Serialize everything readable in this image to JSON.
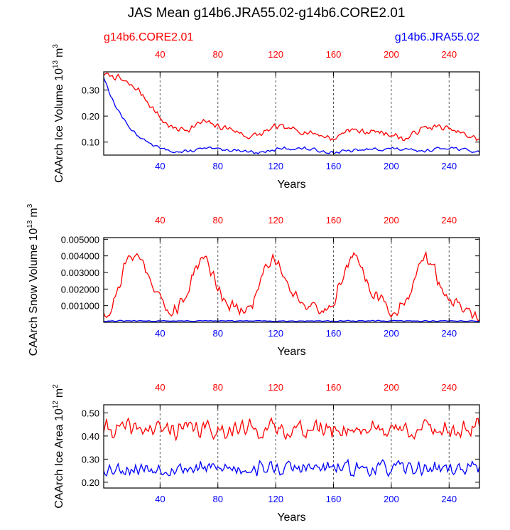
{
  "title": "JAS Mean g14b6.JRA55.02-g14b6.CORE2.01",
  "legend": {
    "left": "g14b6.CORE2.01",
    "right": "g14b6.JRA55.02"
  },
  "colors": {
    "core": "#ff0000",
    "jra": "#0000ff",
    "axis": "#000000",
    "gridline": "#555555"
  },
  "xlabel": "Years",
  "chart_data": [
    {
      "type": "line",
      "ylabel_main": "CAArch Ice Volume 10",
      "ylabel_exp": "13",
      "ylabel_unit": "m",
      "ylabel_unit_exp": "3",
      "xlim": [
        1,
        261
      ],
      "ylim": [
        0.05,
        0.37
      ],
      "xticks": [
        40,
        80,
        120,
        160,
        200,
        240
      ],
      "yticks": [
        0.1,
        0.2,
        0.3
      ],
      "ytick_labels": [
        "0.10",
        "0.20",
        "0.30"
      ],
      "series": [
        {
          "name": "g14b6.CORE2.01",
          "color": "#ff0000",
          "anchors": [
            [
              1,
              0.36
            ],
            [
              10,
              0.35
            ],
            [
              25,
              0.3
            ],
            [
              35,
              0.23
            ],
            [
              42,
              0.18
            ],
            [
              50,
              0.15
            ],
            [
              60,
              0.15
            ],
            [
              70,
              0.18
            ],
            [
              80,
              0.16
            ],
            [
              90,
              0.15
            ],
            [
              100,
              0.12
            ],
            [
              110,
              0.13
            ],
            [
              120,
              0.16
            ],
            [
              130,
              0.15
            ],
            [
              140,
              0.14
            ],
            [
              150,
              0.13
            ],
            [
              160,
              0.11
            ],
            [
              170,
              0.15
            ],
            [
              180,
              0.14
            ],
            [
              190,
              0.14
            ],
            [
              200,
              0.13
            ],
            [
              210,
              0.11
            ],
            [
              220,
              0.15
            ],
            [
              230,
              0.16
            ],
            [
              240,
              0.15
            ],
            [
              250,
              0.13
            ],
            [
              261,
              0.11
            ]
          ],
          "noise": 0.014,
          "seed": 7
        },
        {
          "name": "g14b6.JRA55.02",
          "color": "#0000ff",
          "anchors": [
            [
              1,
              0.35
            ],
            [
              8,
              0.25
            ],
            [
              18,
              0.16
            ],
            [
              28,
              0.11
            ],
            [
              40,
              0.075
            ],
            [
              55,
              0.06
            ],
            [
              70,
              0.075
            ],
            [
              90,
              0.07
            ],
            [
              110,
              0.06
            ],
            [
              125,
              0.075
            ],
            [
              140,
              0.075
            ],
            [
              160,
              0.06
            ],
            [
              180,
              0.07
            ],
            [
              200,
              0.075
            ],
            [
              220,
              0.065
            ],
            [
              240,
              0.08
            ],
            [
              261,
              0.06
            ]
          ],
          "noise": 0.008,
          "seed": 13
        }
      ]
    },
    {
      "type": "line",
      "ylabel_main": "CAArch Snow Volume 10",
      "ylabel_exp": "13",
      "ylabel_unit": "m",
      "ylabel_unit_exp": "3",
      "xlim": [
        1,
        261
      ],
      "ylim": [
        0.0,
        0.0051
      ],
      "xticks": [
        40,
        80,
        120,
        160,
        200,
        240
      ],
      "yticks": [
        0.001,
        0.002,
        0.003,
        0.004,
        0.005
      ],
      "ytick_labels": [
        "0.001000",
        "0.002000",
        "0.003000",
        "0.004000",
        "0.005000"
      ],
      "series": [
        {
          "name": "g14b6.CORE2.01",
          "color": "#ff0000",
          "anchors": [
            [
              1,
              0.0007
            ],
            [
              5,
              0.0005
            ],
            [
              10,
              0.0018
            ],
            [
              16,
              0.0035
            ],
            [
              22,
              0.0042
            ],
            [
              28,
              0.0036
            ],
            [
              34,
              0.0025
            ],
            [
              40,
              0.0015
            ],
            [
              45,
              0.0006
            ],
            [
              52,
              0.0008
            ],
            [
              58,
              0.0015
            ],
            [
              64,
              0.0033
            ],
            [
              70,
              0.004
            ],
            [
              76,
              0.003
            ],
            [
              82,
              0.0018
            ],
            [
              88,
              0.0011
            ],
            [
              95,
              0.0006
            ],
            [
              100,
              0.0007
            ],
            [
              106,
              0.0015
            ],
            [
              112,
              0.0033
            ],
            [
              118,
              0.004
            ],
            [
              124,
              0.0032
            ],
            [
              130,
              0.002
            ],
            [
              136,
              0.0015
            ],
            [
              142,
              0.001
            ],
            [
              150,
              0.0006
            ],
            [
              156,
              0.0008
            ],
            [
              162,
              0.0017
            ],
            [
              168,
              0.0032
            ],
            [
              174,
              0.004
            ],
            [
              180,
              0.0032
            ],
            [
              186,
              0.002
            ],
            [
              192,
              0.0014
            ],
            [
              198,
              0.0008
            ],
            [
              205,
              0.0006
            ],
            [
              212,
              0.0018
            ],
            [
              218,
              0.003
            ],
            [
              224,
              0.004
            ],
            [
              230,
              0.0031
            ],
            [
              236,
              0.0018
            ],
            [
              242,
              0.0012
            ],
            [
              248,
              0.0009
            ],
            [
              254,
              0.0006
            ],
            [
              261,
              0.0003
            ]
          ],
          "noise": 0.0005,
          "seed": 21
        },
        {
          "name": "g14b6.JRA55.02",
          "color": "#0000ff",
          "anchors": [
            [
              1,
              8e-05
            ],
            [
              261,
              8e-05
            ]
          ],
          "noise": 4e-05,
          "seed": 31
        }
      ]
    },
    {
      "type": "line",
      "ylabel_main": "CAArch Ice Area 10",
      "ylabel_exp": "12",
      "ylabel_unit": "m",
      "ylabel_unit_exp": "2",
      "xlim": [
        1,
        261
      ],
      "ylim": [
        0.175,
        0.535
      ],
      "xticks": [
        40,
        80,
        120,
        160,
        200,
        240
      ],
      "yticks": [
        0.2,
        0.3,
        0.4,
        0.5
      ],
      "ytick_labels": [
        "0.20",
        "0.30",
        "0.40",
        "0.50"
      ],
      "series": [
        {
          "name": "g14b6.CORE2.01",
          "color": "#ff0000",
          "anchors": [
            [
              1,
              0.43
            ],
            [
              261,
              0.43
            ]
          ],
          "noise": 0.05,
          "seed": 41
        },
        {
          "name": "g14b6.JRA55.02",
          "color": "#0000ff",
          "anchors": [
            [
              1,
              0.26
            ],
            [
              261,
              0.26
            ]
          ],
          "noise": 0.04,
          "seed": 53
        }
      ]
    }
  ]
}
